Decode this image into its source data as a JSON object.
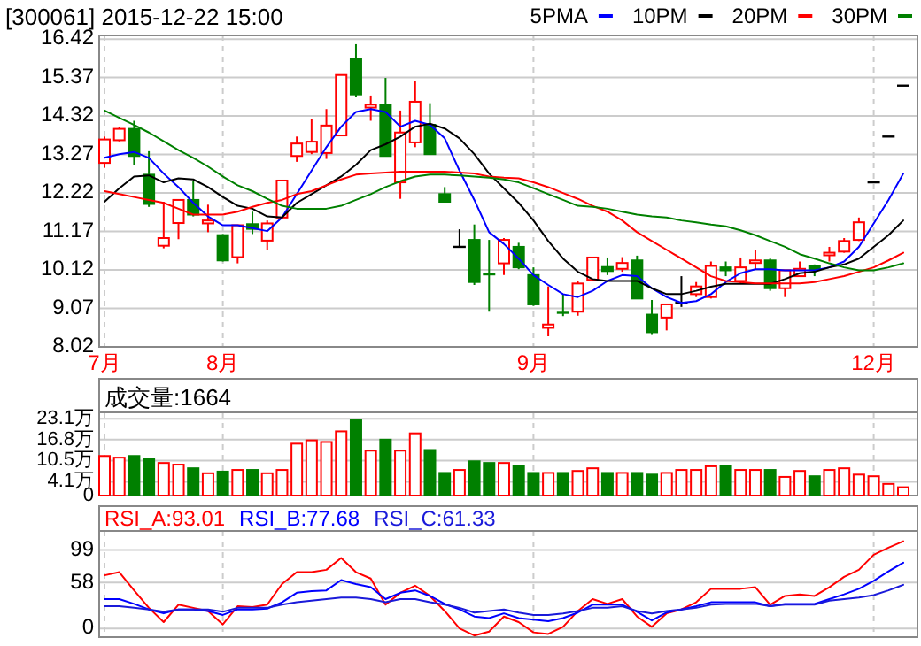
{
  "chart_data": [
    {
      "type": "candlestick",
      "title": "[300061] 2015-12-22 15:00",
      "categories": [
        "7月",
        null,
        null,
        null,
        null,
        null,
        null,
        null,
        "8月",
        null,
        null,
        null,
        null,
        null,
        null,
        null,
        null,
        null,
        null,
        null,
        null,
        null,
        null,
        null,
        null,
        null,
        null,
        null,
        null,
        "9月",
        null,
        null,
        null,
        null,
        null,
        null,
        null,
        null,
        null,
        null,
        null,
        null,
        null,
        null,
        null,
        null,
        null,
        null,
        null,
        null,
        null,
        null,
        "12月",
        null,
        null
      ],
      "ohlc": [
        [
          13.04,
          13.76,
          12.91,
          13.68
        ],
        [
          13.66,
          14.02,
          13.63,
          13.97
        ],
        [
          13.97,
          14.19,
          12.99,
          13.23
        ],
        [
          12.72,
          13.36,
          11.84,
          11.92
        ],
        [
          10.78,
          11.98,
          10.71,
          10.99
        ],
        [
          11.4,
          12.03,
          10.96,
          12.03
        ],
        [
          12.03,
          12.54,
          11.58,
          11.63
        ],
        [
          11.39,
          11.9,
          11.15,
          11.47
        ],
        [
          11.07,
          11.1,
          10.35,
          10.38
        ],
        [
          10.47,
          11.34,
          10.3,
          11.34
        ],
        [
          11.37,
          11.71,
          11.1,
          11.24
        ],
        [
          10.92,
          11.47,
          10.67,
          11.39
        ],
        [
          11.55,
          12.56,
          11.52,
          12.56
        ],
        [
          13.23,
          13.76,
          13.07,
          13.57
        ],
        [
          13.34,
          14.24,
          13.28,
          13.62
        ],
        [
          13.31,
          14.51,
          13.15,
          14.06
        ],
        [
          13.79,
          15.44,
          13.79,
          15.44
        ],
        [
          15.89,
          16.28,
          14.83,
          14.91
        ],
        [
          14.55,
          14.88,
          14.19,
          14.63
        ],
        [
          14.63,
          15.36,
          13.23,
          13.23
        ],
        [
          12.51,
          14.47,
          12.06,
          13.87
        ],
        [
          13.6,
          15.27,
          13.47,
          14.71
        ],
        [
          14.08,
          14.67,
          13.28,
          13.28
        ],
        [
          12.19,
          12.38,
          11.98,
          11.98
        ],
        [
          10.75,
          11.23,
          10.75,
          10.75
        ],
        [
          10.94,
          11.36,
          9.71,
          9.79
        ],
        [
          10.03,
          10.94,
          8.98,
          10.0
        ],
        [
          10.3,
          10.99,
          9.98,
          10.94
        ],
        [
          10.75,
          10.86,
          10.14,
          10.19
        ],
        [
          9.98,
          10.19,
          9.14,
          9.18
        ],
        [
          8.54,
          9.67,
          8.31,
          8.63
        ],
        [
          8.98,
          9.46,
          8.86,
          8.95
        ],
        [
          8.98,
          9.82,
          8.87,
          9.75
        ],
        [
          9.85,
          10.46,
          9.82,
          10.46
        ],
        [
          10.2,
          10.46,
          9.98,
          10.09
        ],
        [
          10.15,
          10.47,
          10.07,
          10.31
        ],
        [
          10.38,
          10.51,
          9.34,
          9.34
        ],
        [
          8.9,
          9.3,
          8.37,
          8.42
        ],
        [
          8.82,
          9.18,
          8.47,
          9.18
        ],
        [
          9.22,
          9.95,
          9.11,
          9.22
        ],
        [
          9.46,
          9.79,
          9.38,
          9.67
        ],
        [
          9.38,
          10.35,
          9.34,
          10.23
        ],
        [
          10.19,
          10.35,
          9.95,
          10.11
        ],
        [
          9.82,
          10.46,
          9.75,
          10.19
        ],
        [
          10.31,
          10.67,
          10.14,
          10.38
        ],
        [
          10.38,
          10.43,
          9.55,
          9.62
        ],
        [
          9.62,
          10.11,
          9.38,
          10.11
        ],
        [
          9.95,
          10.35,
          9.95,
          10.15
        ],
        [
          10.23,
          10.27,
          9.95,
          10.14
        ],
        [
          10.52,
          10.75,
          10.35,
          10.59
        ],
        [
          10.62,
          10.99,
          10.59,
          10.91
        ],
        [
          10.94,
          11.55,
          10.91,
          11.42
        ],
        [
          12.51,
          12.51,
          12.51,
          12.51
        ],
        [
          13.76,
          13.76,
          13.76,
          13.76
        ],
        [
          15.15,
          15.15,
          15.15,
          15.15
        ]
      ],
      "colors": [
        "#ff0000",
        "#ff0000",
        "#008000",
        "#008000",
        "#ff0000",
        "#ff0000",
        "#008000",
        "#ff0000",
        "#008000",
        "#ff0000",
        "#008000",
        "#ff0000",
        "#ff0000",
        "#ff0000",
        "#ff0000",
        "#ff0000",
        "#ff0000",
        "#008000",
        "#ff0000",
        "#008000",
        "#ff0000",
        "#ff0000",
        "#008000",
        "#008000",
        "#000000",
        "#008000",
        "#008000",
        "#ff0000",
        "#008000",
        "#008000",
        "#ff0000",
        "#008000",
        "#ff0000",
        "#ff0000",
        "#008000",
        "#ff0000",
        "#008000",
        "#008000",
        "#ff0000",
        "#000000",
        "#ff0000",
        "#ff0000",
        "#008000",
        "#ff0000",
        "#ff0000",
        "#008000",
        "#ff0000",
        "#ff0000",
        "#008000",
        "#ff0000",
        "#ff0000",
        "#ff0000",
        "#000000",
        "#000000",
        "#000000"
      ],
      "series": [
        {
          "name": "5PMA",
          "type": "line",
          "color": "#0000ff",
          "values": [
            13.18,
            13.28,
            13.34,
            13.18,
            12.75,
            12.38,
            11.95,
            11.58,
            11.34,
            11.34,
            11.26,
            11.18,
            11.55,
            12.19,
            12.83,
            13.47,
            14.03,
            14.43,
            14.51,
            14.43,
            14.03,
            14.19,
            14.08,
            13.71,
            12.83,
            12.03,
            11.15,
            10.83,
            10.43,
            9.98,
            9.71,
            9.46,
            9.38,
            9.55,
            9.82,
            9.98,
            9.95,
            9.62,
            9.38,
            9.22,
            9.27,
            9.46,
            9.79,
            10.03,
            10.14,
            10.14,
            10.11,
            10.11,
            10.11,
            10.19,
            10.35,
            10.75,
            11.39,
            12.03,
            12.75
          ]
        },
        {
          "name": "10PM",
          "type": "line",
          "color": "#000000",
          "values": [
            11.98,
            12.35,
            12.67,
            12.7,
            12.51,
            12.62,
            12.59,
            12.38,
            12.11,
            11.87,
            11.79,
            11.58,
            11.55,
            11.95,
            12.19,
            12.43,
            12.67,
            12.99,
            13.39,
            13.55,
            13.76,
            14.03,
            14.11,
            13.98,
            13.71,
            13.28,
            12.75,
            12.35,
            11.95,
            11.47,
            10.91,
            10.43,
            10.07,
            9.87,
            9.82,
            9.82,
            9.82,
            9.62,
            9.46,
            9.46,
            9.55,
            9.66,
            9.74,
            9.74,
            9.74,
            9.74,
            9.87,
            10.03,
            10.07,
            10.19,
            10.27,
            10.43,
            10.75,
            11.07,
            11.47
          ]
        },
        {
          "name": "20PM",
          "type": "line",
          "color": "#ff0000",
          "values": [
            12.27,
            12.19,
            12.11,
            12.03,
            11.95,
            11.79,
            11.63,
            11.63,
            11.63,
            11.71,
            11.84,
            11.95,
            12.03,
            12.19,
            12.27,
            12.43,
            12.59,
            12.72,
            12.75,
            12.78,
            12.8,
            12.8,
            12.8,
            12.8,
            12.78,
            12.75,
            12.67,
            12.64,
            12.62,
            12.51,
            12.38,
            12.22,
            12.06,
            11.87,
            11.71,
            11.47,
            11.15,
            10.91,
            10.67,
            10.43,
            10.19,
            9.95,
            9.82,
            9.79,
            9.75,
            9.75,
            9.75,
            9.75,
            9.79,
            9.87,
            9.95,
            10.07,
            10.19,
            10.38,
            10.59
          ]
        },
        {
          "name": "30PM",
          "type": "line",
          "color": "#008000",
          "values": [
            14.47,
            14.27,
            14.08,
            13.87,
            13.63,
            13.39,
            13.18,
            12.94,
            12.67,
            12.43,
            12.27,
            12.06,
            11.87,
            11.79,
            11.79,
            11.79,
            11.87,
            12.03,
            12.19,
            12.38,
            12.54,
            12.67,
            12.72,
            12.72,
            12.7,
            12.67,
            12.64,
            12.59,
            12.51,
            12.35,
            12.19,
            12.03,
            11.87,
            11.84,
            11.79,
            11.71,
            11.63,
            11.58,
            11.55,
            11.47,
            11.42,
            11.36,
            11.31,
            11.2,
            11.07,
            10.91,
            10.75,
            10.55,
            10.43,
            10.3,
            10.19,
            10.11,
            10.11,
            10.19,
            10.3
          ]
        }
      ],
      "ylim": [
        8.02,
        16.52
      ],
      "yticks": [
        8.02,
        9.07,
        10.12,
        11.17,
        12.22,
        13.27,
        14.32,
        15.37,
        16.42
      ],
      "grid": true,
      "legend": "top right"
    },
    {
      "type": "bar",
      "title": "成交量:1664",
      "categories": [
        null,
        null,
        null,
        null,
        null,
        null,
        null,
        null,
        null,
        null,
        null,
        null,
        null,
        null,
        null,
        null,
        null,
        null,
        null,
        null,
        null,
        null,
        null,
        null,
        null,
        null,
        null,
        null,
        null,
        null,
        null,
        null,
        null,
        null,
        null,
        null,
        null,
        null,
        null,
        null,
        null,
        null,
        null,
        null,
        null,
        null,
        null,
        null,
        null,
        null,
        null,
        null,
        null,
        null,
        null
      ],
      "values": [
        11.9,
        11.4,
        11.9,
        10.9,
        9.8,
        9.3,
        8.2,
        6.7,
        7.2,
        7.7,
        7.7,
        6.7,
        7.7,
        15.6,
        16.6,
        16.1,
        19.3,
        22.6,
        13.5,
        16.8,
        13.5,
        18.7,
        13.7,
        6.8,
        7.7,
        10.3,
        9.8,
        9.8,
        8.9,
        6.8,
        6.8,
        6.8,
        7.4,
        8.2,
        6.8,
        6.8,
        6.8,
        6.3,
        6.8,
        7.7,
        7.7,
        8.8,
        8.9,
        7.7,
        7.7,
        7.7,
        5.6,
        7.4,
        5.8,
        7.7,
        8.2,
        6.3,
        5.8,
        3.5,
        2.5
      ],
      "colors": [
        "#ff0000",
        "#ff0000",
        "#008000",
        "#008000",
        "#ff0000",
        "#ff0000",
        "#008000",
        "#ff0000",
        "#008000",
        "#ff0000",
        "#008000",
        "#ff0000",
        "#ff0000",
        "#ff0000",
        "#ff0000",
        "#ff0000",
        "#ff0000",
        "#008000",
        "#ff0000",
        "#008000",
        "#ff0000",
        "#ff0000",
        "#008000",
        "#008000",
        "#ff0000",
        "#008000",
        "#008000",
        "#ff0000",
        "#008000",
        "#008000",
        "#ff0000",
        "#008000",
        "#ff0000",
        "#ff0000",
        "#008000",
        "#ff0000",
        "#008000",
        "#008000",
        "#ff0000",
        "#ff0000",
        "#ff0000",
        "#ff0000",
        "#008000",
        "#ff0000",
        "#ff0000",
        "#008000",
        "#ff0000",
        "#ff0000",
        "#008000",
        "#ff0000",
        "#ff0000",
        "#ff0000",
        "#ff0000",
        "#ff0000",
        "#ff0000"
      ],
      "ylim": [
        0,
        25
      ],
      "yticks": [
        0,
        {
          "value": 4.1,
          "label": "4.1万"
        },
        {
          "value": 10.5,
          "label": "10.5万"
        },
        {
          "value": 16.8,
          "label": "16.8万"
        },
        {
          "value": 23.1,
          "label": "23.1万"
        }
      ],
      "grid": true,
      "tick_labels": "y"
    },
    {
      "type": "line",
      "categories": [
        null,
        null,
        null,
        null,
        null,
        null,
        null,
        null,
        null,
        null,
        null,
        null,
        null,
        null,
        null,
        null,
        null,
        null,
        null,
        null,
        null,
        null,
        null,
        null,
        null,
        null,
        null,
        null,
        null,
        null,
        null,
        null,
        null,
        null,
        null,
        null,
        null,
        null,
        null,
        null,
        null,
        null,
        null,
        null,
        null,
        null,
        null,
        null,
        null,
        null,
        null,
        null,
        null,
        null,
        null
      ],
      "series": [
        {
          "name": "RSI_A:93.01",
          "color": "#ff0000",
          "values": [
            67,
            71,
            48,
            26,
            8,
            30,
            26,
            22,
            5,
            28,
            27,
            30,
            56,
            71,
            71,
            74,
            89,
            71,
            63,
            30,
            45,
            54,
            41,
            22,
            0,
            -9,
            -4,
            15,
            8,
            -5,
            -7,
            2,
            22,
            37,
            31,
            37,
            15,
            2,
            19,
            24,
            33,
            50,
            50,
            50,
            52,
            30,
            41,
            43,
            41,
            52,
            65,
            74,
            93,
            102,
            110
          ]
        },
        {
          "name": "RSI_B:77.68",
          "color": "#0000ff",
          "values": [
            37,
            37,
            31,
            24,
            19,
            24,
            24,
            22,
            17,
            24,
            24,
            25,
            33,
            45,
            47,
            48,
            61,
            56,
            52,
            37,
            45,
            48,
            41,
            31,
            24,
            15,
            13,
            19,
            13,
            11,
            9,
            13,
            20,
            30,
            30,
            30,
            21,
            10,
            20,
            24,
            28,
            33,
            33,
            33,
            33,
            28,
            31,
            31,
            31,
            37,
            43,
            50,
            60,
            72,
            83
          ]
        },
        {
          "name": "RSI_C:61.33",
          "color": "#1a1ad9",
          "values": [
            28,
            28,
            26,
            24,
            21,
            24,
            24,
            24,
            21,
            26,
            26,
            26,
            30,
            33,
            35,
            37,
            39,
            39,
            37,
            33,
            37,
            37,
            33,
            30,
            26,
            20,
            22,
            24,
            20,
            17,
            17,
            19,
            22,
            26,
            26,
            28,
            22,
            19,
            22,
            24,
            26,
            30,
            31,
            31,
            31,
            28,
            30,
            30,
            30,
            35,
            37,
            39,
            42,
            48,
            55
          ]
        }
      ],
      "ylim": [
        -11,
        123
      ],
      "yticks": [
        0,
        58,
        99
      ],
      "grid": true,
      "legend": "top left",
      "tick_labels": "y"
    }
  ]
}
